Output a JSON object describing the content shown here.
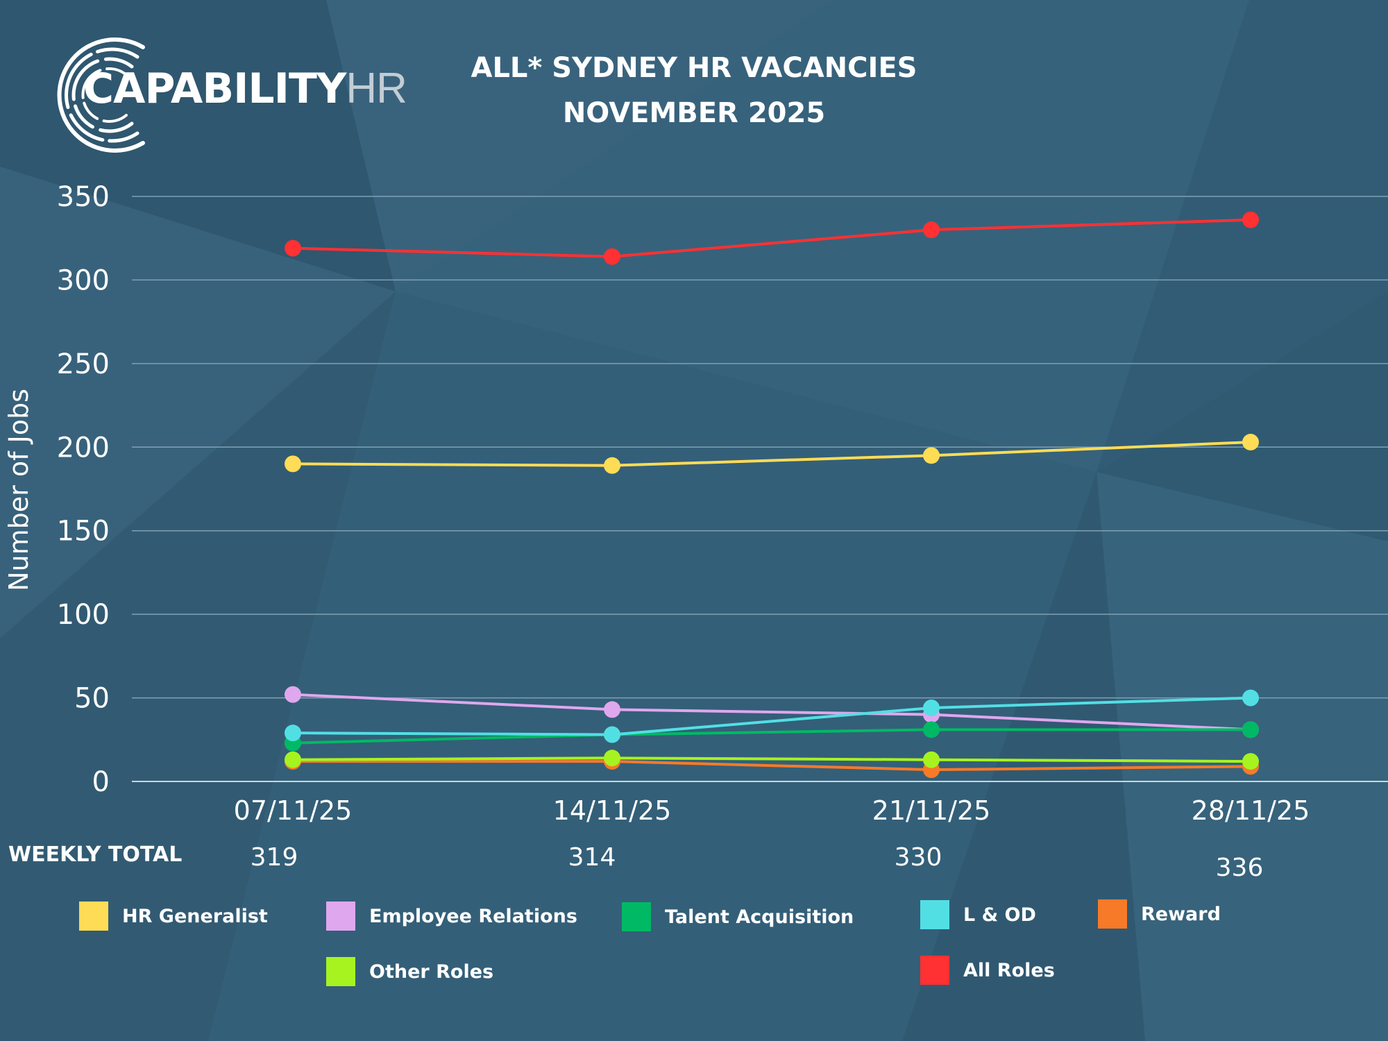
{
  "brand": {
    "name_bold": "CAPABILITY",
    "name_light": "HR"
  },
  "title": {
    "line1": "ALL* SYDNEY HR VACANCIES",
    "line2": "NOVEMBER 2025"
  },
  "weekly_total": {
    "label": "WEEKLY TOTAL",
    "values": [
      "319",
      "314",
      "330",
      "336"
    ]
  },
  "colors": {
    "background": "#355e77",
    "gridline": "#7fa0b4",
    "text": "#ffffff"
  },
  "chart_data": {
    "type": "line",
    "title": "",
    "xlabel": "",
    "ylabel": "Number of Jobs",
    "categories": [
      "07/11/25",
      "14/11/25",
      "21/11/25",
      "28/11/25"
    ],
    "ylim": [
      0,
      350
    ],
    "yticks": [
      0,
      50,
      100,
      150,
      200,
      250,
      300,
      350
    ],
    "grid": true,
    "legend_position": "bottom",
    "series": [
      {
        "name": "HR Generalist",
        "color": "#fedc56",
        "values": [
          190,
          189,
          195,
          203
        ]
      },
      {
        "name": "Employee Relations",
        "color": "#dfa7ee",
        "values": [
          52,
          43,
          40,
          31
        ]
      },
      {
        "name": "Talent Acquisition",
        "color": "#00b965",
        "values": [
          23,
          28,
          31,
          31
        ]
      },
      {
        "name": "L & OD",
        "color": "#52dfe4",
        "values": [
          29,
          28,
          44,
          50
        ]
      },
      {
        "name": "Reward",
        "color": "#f77a28",
        "values": [
          12,
          12,
          7,
          9
        ]
      },
      {
        "name": "Other Roles",
        "color": "#a6f320",
        "values": [
          13,
          14,
          13,
          12
        ]
      },
      {
        "name": "All Roles",
        "color": "#ff3133",
        "values": [
          319,
          314,
          330,
          336
        ]
      }
    ]
  }
}
